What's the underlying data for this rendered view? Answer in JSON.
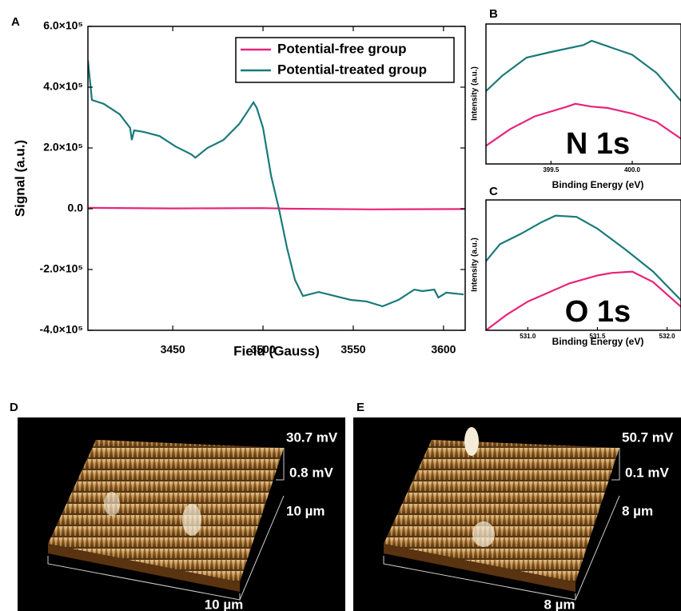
{
  "chart_data": [
    {
      "type": "line",
      "panel": "A",
      "xlabel": "Field (Gauss)",
      "ylabel": "Signal (a.u.)",
      "xlim": [
        3403,
        3612
      ],
      "xticks": [
        3450,
        3500,
        3550,
        3600
      ],
      "ylim": [
        -400000,
        600000
      ],
      "yticks": [
        {
          "value": -400000,
          "label": "-4.0×10⁵"
        },
        {
          "value": -200000,
          "label": "-2.0×10⁵"
        },
        {
          "value": 0,
          "label": "0.0"
        },
        {
          "value": 200000,
          "label": "2.0×10⁵"
        },
        {
          "value": 400000,
          "label": "4.0×10⁵"
        },
        {
          "value": 600000,
          "label": "6.0×10⁵"
        }
      ],
      "legend": "upper right",
      "series": [
        {
          "name": "Potential-free group",
          "color": "#e8247a",
          "x": [
            3403,
            3450,
            3500,
            3515,
            3560,
            3612
          ],
          "values": [
            3000,
            1000,
            2000,
            0,
            -2000,
            -1000
          ]
        },
        {
          "name": "Potential-treated group",
          "color": "#1b7a7a",
          "x": [
            3403,
            3405.2,
            3411.8,
            3420.6,
            3426.4,
            3427.3,
            3428.6,
            3433.9,
            3442.7,
            3451.5,
            3460.3,
            3462.5,
            3469.2,
            3478,
            3486.8,
            3491.2,
            3494.7,
            3496.5,
            3500,
            3504.5,
            3508.9,
            3513.3,
            3517.7,
            3522.1,
            3530.9,
            3539.7,
            3548.6,
            3557.4,
            3566.2,
            3575,
            3583.8,
            3588.3,
            3594.9,
            3597.1,
            3601.5,
            3611.2
          ],
          "values": [
            489000,
            358000,
            345000,
            311000,
            266000,
            226000,
            258000,
            253000,
            239000,
            205000,
            179000,
            168000,
            200000,
            226000,
            279000,
            318000,
            350000,
            332000,
            266000,
            108000,
            -3000,
            -129000,
            -234000,
            -287000,
            -274000,
            -287000,
            -300000,
            -305000,
            -321000,
            -300000,
            -266000,
            -271000,
            -266000,
            -292000,
            -276000,
            -282000
          ]
        }
      ]
    },
    {
      "type": "line",
      "panel": "B",
      "xlabel": "Binding Energy (eV)",
      "ylabel": "Intensity (a.u.)",
      "annotation": "N 1s",
      "xlim": [
        399.1,
        400.3
      ],
      "xticks": [
        399.5,
        {
          "value": 400,
          "label": "400.0"
        }
      ],
      "ylim": [
        0,
        10
      ],
      "series": [
        {
          "color": "#e8247a",
          "x": [
            399.1,
            399.25,
            399.4,
            399.6,
            399.65,
            399.75,
            399.85,
            400.0,
            400.15,
            400.3
          ],
          "values": [
            1.3,
            2.5,
            3.4,
            4.1,
            4.3,
            4.1,
            4.0,
            3.6,
            3.0,
            1.8
          ]
        },
        {
          "color": "#1b7a7a",
          "x": [
            399.1,
            399.2,
            399.35,
            399.5,
            399.7,
            399.75,
            399.9,
            400.0,
            400.15,
            400.3
          ],
          "values": [
            5.2,
            6.3,
            7.6,
            8.0,
            8.5,
            8.8,
            8.2,
            7.8,
            6.5,
            4.5
          ]
        }
      ]
    },
    {
      "type": "line",
      "panel": "C",
      "xlabel": "Binding Energy (eV)",
      "ylabel": "Intensity (a.u.)",
      "annotation": "O 1s",
      "xlim": [
        530.7,
        532.1
      ],
      "xticks": [
        {
          "value": 531,
          "label": "531.0"
        },
        531.5,
        {
          "value": 532,
          "label": "532.0"
        }
      ],
      "ylim": [
        0,
        10
      ],
      "series": [
        {
          "color": "#e8247a",
          "x": [
            530.7,
            530.85,
            531.0,
            531.3,
            531.5,
            531.6,
            531.75,
            531.9,
            532.1
          ],
          "values": [
            0,
            1.2,
            2.2,
            3.6,
            4.2,
            4.4,
            4.5,
            3.7,
            1.8
          ]
        },
        {
          "color": "#1b7a7a",
          "x": [
            530.7,
            530.8,
            530.95,
            531.1,
            531.2,
            531.35,
            531.5,
            531.7,
            531.9,
            532.1
          ],
          "values": [
            5.3,
            6.6,
            7.4,
            8.3,
            8.8,
            8.7,
            7.8,
            6.2,
            4.5,
            2.3
          ]
        }
      ]
    }
  ],
  "afm_images": [
    {
      "panel": "D",
      "labels": [
        "30.7 mV",
        "0.8 mV",
        "10 µm",
        "10 µm"
      ]
    },
    {
      "panel": "E",
      "labels": [
        "50.7 mV",
        "0.1 mV",
        "8 µm",
        "8 µm"
      ]
    }
  ]
}
